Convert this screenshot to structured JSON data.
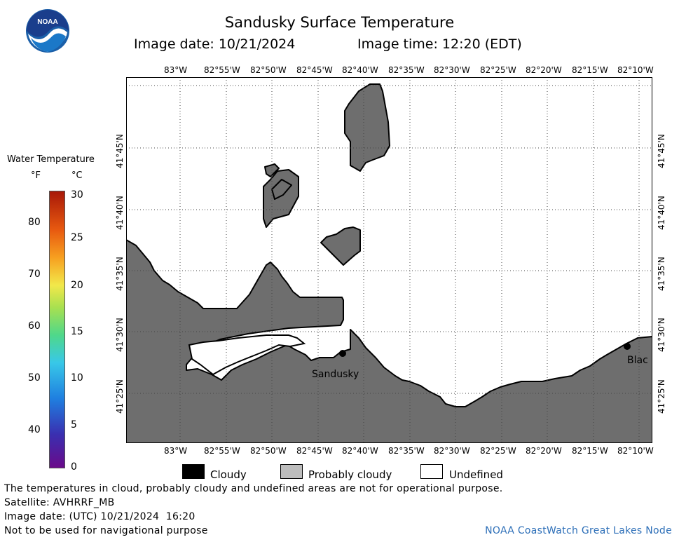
{
  "title": "Sandusky Surface Temperature",
  "image_date_label": "Image date: 10/21/2024",
  "image_time_label": "Image time: 12:20 (EDT)",
  "logo_text": "NOAA",
  "colorbar": {
    "title": "Water Temperature",
    "unit_f": "°F",
    "unit_c": "°C",
    "f_ticks": [
      "80",
      "70",
      "60",
      "50",
      "40"
    ],
    "c_ticks": [
      "30",
      "25",
      "20",
      "15",
      "10",
      "5",
      "0"
    ]
  },
  "map": {
    "lon_labels": [
      "83°W",
      "82°55'W",
      "82°50'W",
      "82°45'W",
      "82°40'W",
      "82°35'W",
      "82°30'W",
      "82°25'W",
      "82°20'W",
      "82°15'W",
      "82°10'W"
    ],
    "lat_labels": [
      "41°45'N",
      "41°40'N",
      "41°35'N",
      "41°30'N",
      "41°25'N"
    ],
    "places": [
      "Sandusky",
      "Blac"
    ],
    "colors": {
      "land": "#6e6e6e",
      "water_undefined": "#ffffff",
      "grid": "#444444"
    }
  },
  "legend": [
    {
      "label": "Cloudy",
      "color": "#000000"
    },
    {
      "label": "Probably cloudy",
      "color": "#bdbdbd"
    },
    {
      "label": "Undefined",
      "color": "#ffffff"
    }
  ],
  "footer": {
    "disclaimer": "The temperatures in cloud, probably cloudy and undefined areas are not for operational purpose.",
    "satellite": "Satellite: AVHRRF_MB",
    "utc_date": "Image date: (UTC) 10/21/2024  16:20",
    "nav_warning": "Not to be used for navigational purpose",
    "credit": "NOAA CoastWatch Great Lakes Node"
  }
}
